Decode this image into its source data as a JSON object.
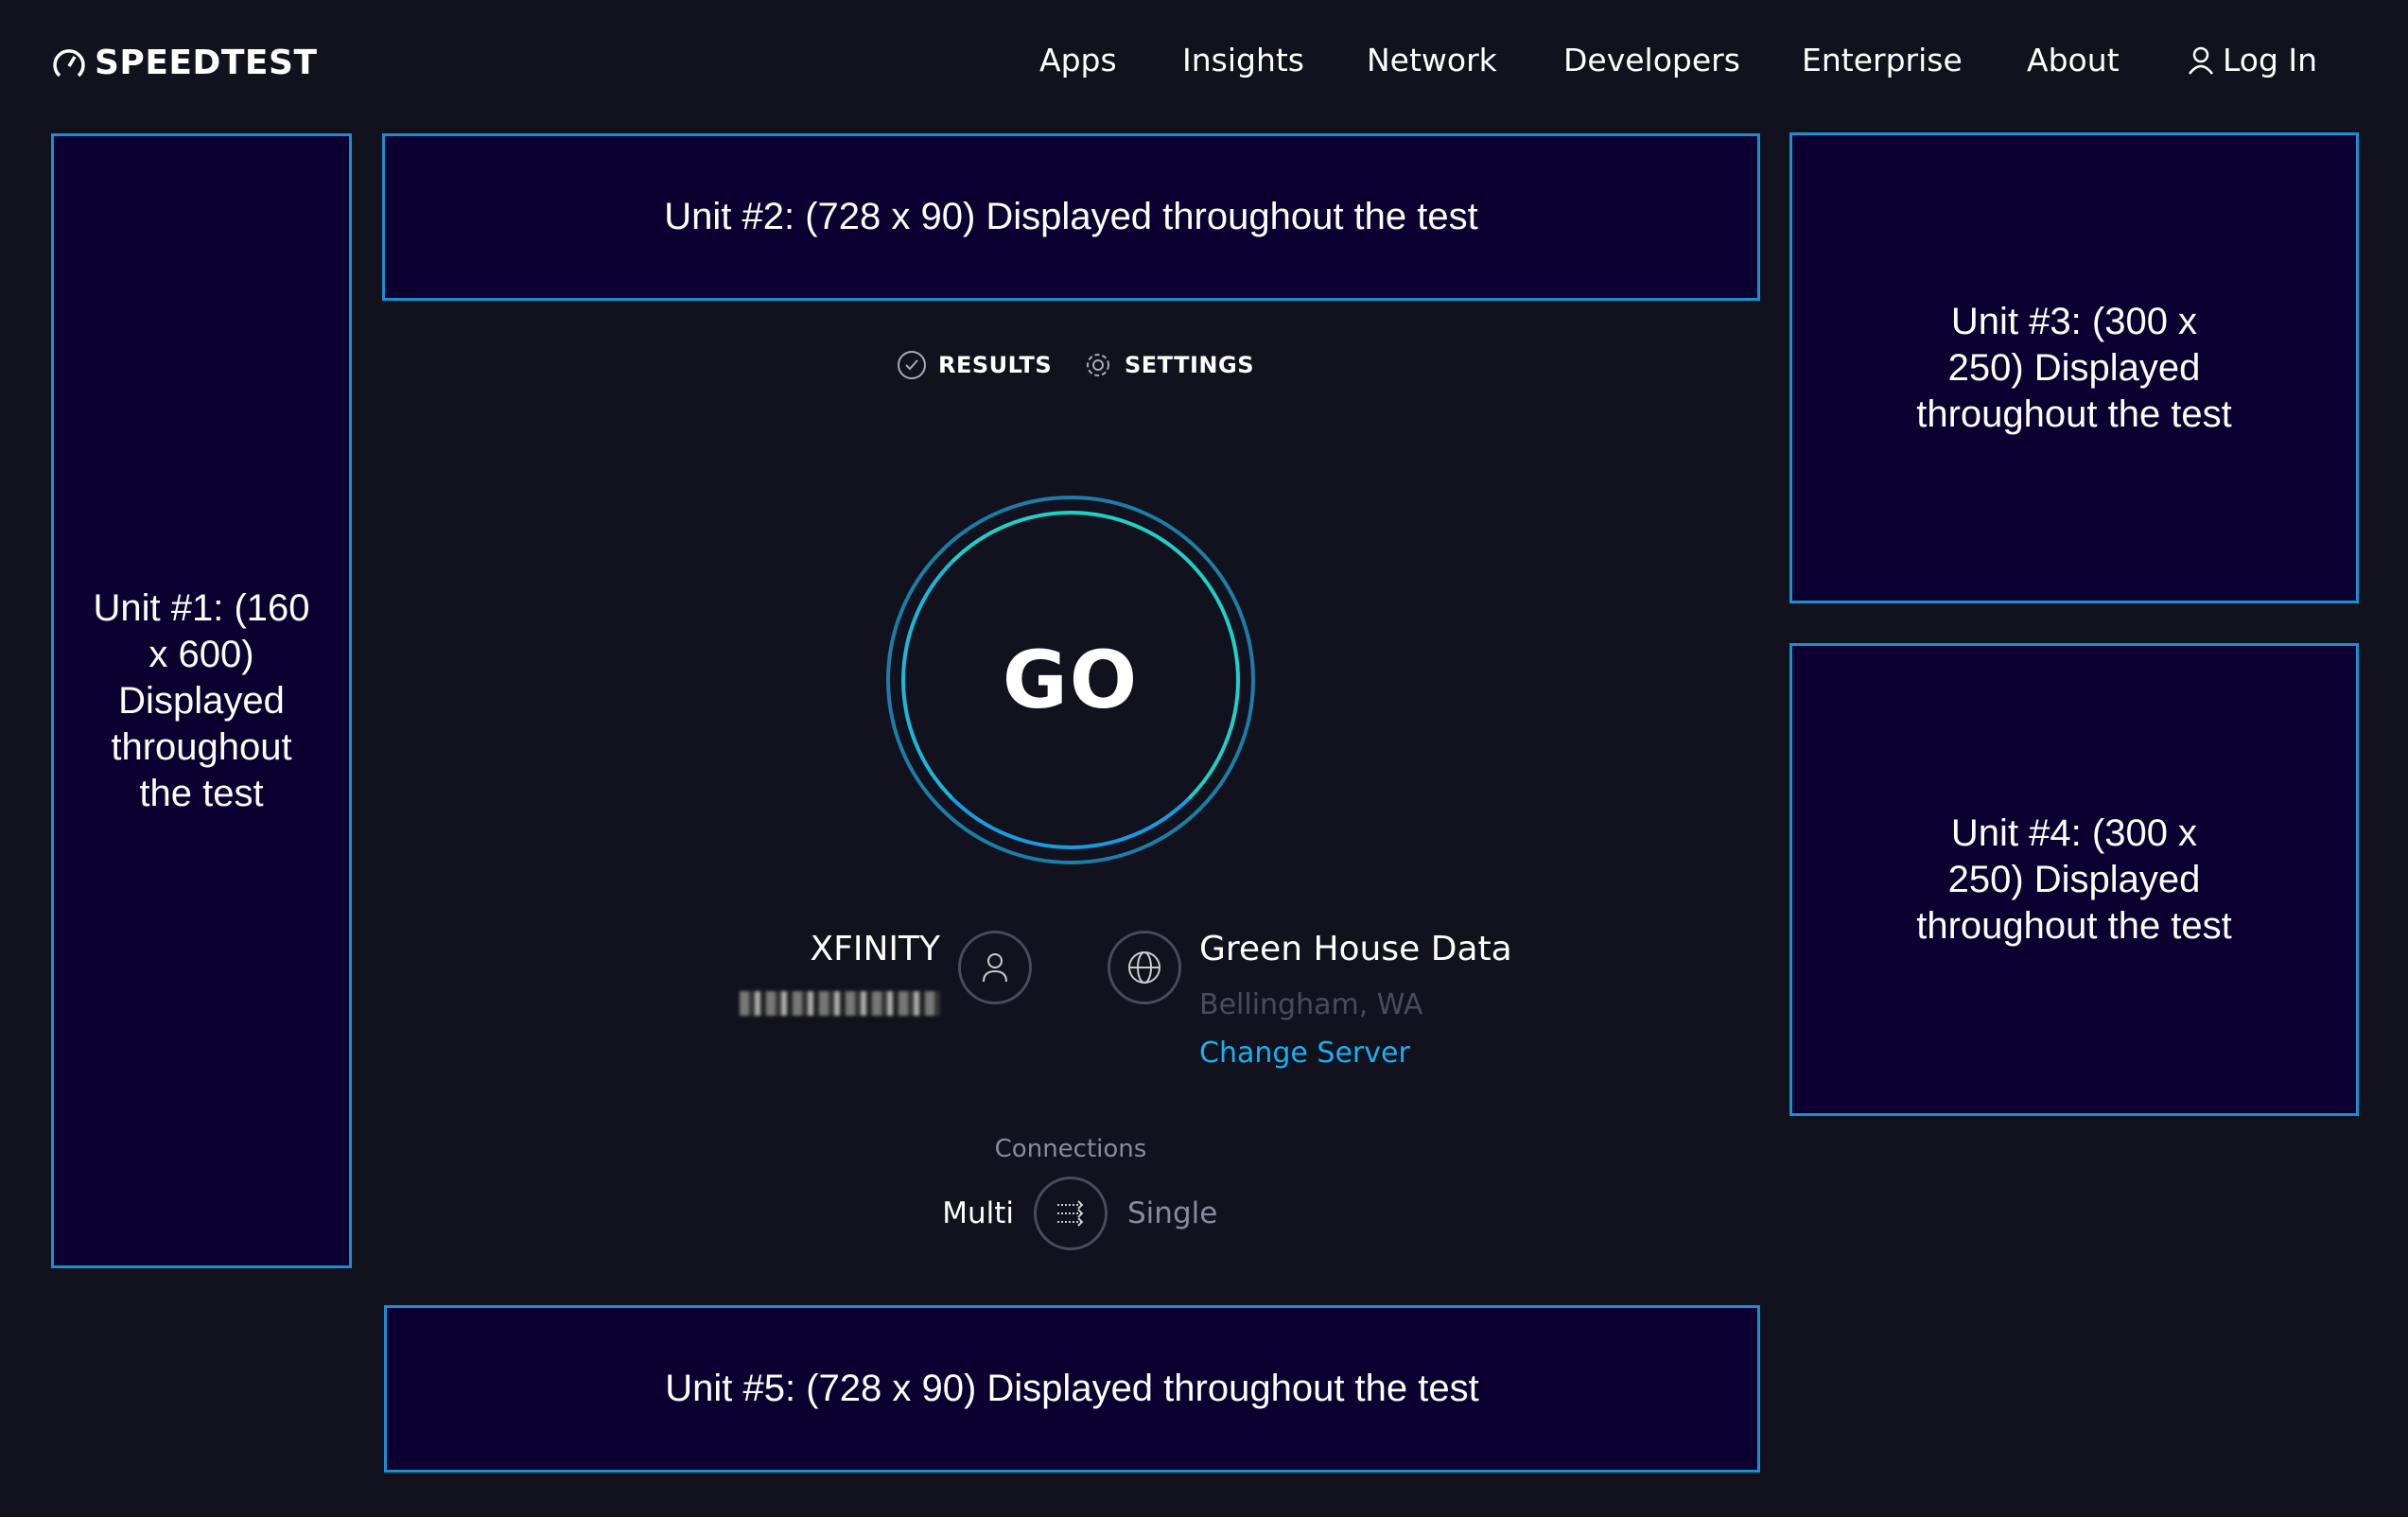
{
  "header": {
    "logo": "SPEEDTEST",
    "nav": [
      "Apps",
      "Insights",
      "Network",
      "Developers",
      "Enterprise",
      "About"
    ],
    "login": "Log In"
  },
  "ads": {
    "unit1": "Unit #1: (160 x 600) Displayed throughout the test",
    "unit2": "Unit #2: (728 x 90) Displayed throughout the test",
    "unit3": "Unit #3: (300 x 250) Displayed throughout the test",
    "unit4": "Unit #4: (300 x 250) Displayed throughout the test",
    "unit5": "Unit #5: (728 x 90) Displayed throughout the test"
  },
  "tabs": {
    "results": "RESULTS",
    "settings": "SETTINGS"
  },
  "go": "GO",
  "isp": {
    "name": "XFINITY",
    "ip_redacted": "██████████"
  },
  "server": {
    "name": "Green House Data",
    "location": "Bellingham, WA",
    "change": "Change Server"
  },
  "connections": {
    "label": "Connections",
    "multi": "Multi",
    "single": "Single",
    "selected": "Multi"
  },
  "colors": {
    "background": "#11121d",
    "ad_fill": "#0b0030",
    "ad_border": "#1a8fd0",
    "link": "#1ab0f0",
    "go_ring": "#1ed0c8"
  }
}
